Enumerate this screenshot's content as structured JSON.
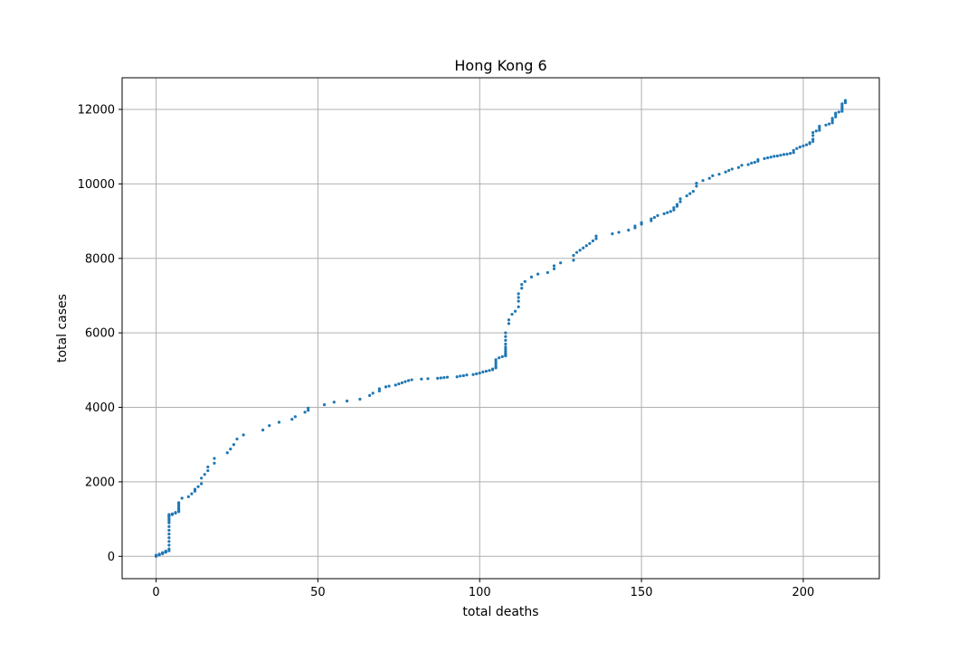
{
  "chart_data": {
    "type": "scatter",
    "title": "Hong Kong 6",
    "xlabel": "total deaths",
    "ylabel": "total cases",
    "xlim": [
      -10.5,
      223.5
    ],
    "ylim": [
      -600,
      12850
    ],
    "xticks": [
      0,
      50,
      100,
      150,
      200
    ],
    "yticks": [
      0,
      2000,
      4000,
      6000,
      8000,
      10000,
      12000
    ],
    "grid": true,
    "marker_color": "#1f77b4",
    "points": [
      [
        0,
        0
      ],
      [
        0,
        5
      ],
      [
        0,
        10
      ],
      [
        0,
        15
      ],
      [
        0,
        20
      ],
      [
        0,
        25
      ],
      [
        0,
        30
      ],
      [
        1,
        40
      ],
      [
        1,
        50
      ],
      [
        1,
        60
      ],
      [
        2,
        70
      ],
      [
        2,
        80
      ],
      [
        2,
        90
      ],
      [
        2,
        100
      ],
      [
        3,
        110
      ],
      [
        3,
        120
      ],
      [
        3,
        130
      ],
      [
        3,
        140
      ],
      [
        4,
        150
      ],
      [
        4,
        200
      ],
      [
        4,
        300
      ],
      [
        4,
        400
      ],
      [
        4,
        500
      ],
      [
        4,
        600
      ],
      [
        4,
        700
      ],
      [
        4,
        800
      ],
      [
        4,
        900
      ],
      [
        4,
        950
      ],
      [
        4,
        1000
      ],
      [
        4,
        1050
      ],
      [
        4,
        1080
      ],
      [
        4,
        1100
      ],
      [
        4,
        1120
      ],
      [
        5,
        1120
      ],
      [
        5,
        1140
      ],
      [
        6,
        1160
      ],
      [
        6,
        1180
      ],
      [
        7,
        1200
      ],
      [
        7,
        1220
      ],
      [
        7,
        1260
      ],
      [
        7,
        1300
      ],
      [
        7,
        1350
      ],
      [
        7,
        1400
      ],
      [
        7,
        1440
      ],
      [
        8,
        1560
      ],
      [
        10,
        1600
      ],
      [
        11,
        1680
      ],
      [
        12,
        1750
      ],
      [
        12,
        1800
      ],
      [
        13,
        1870
      ],
      [
        14,
        1950
      ],
      [
        14,
        2100
      ],
      [
        15,
        2200
      ],
      [
        16,
        2300
      ],
      [
        16,
        2400
      ],
      [
        18,
        2500
      ],
      [
        18,
        2630
      ],
      [
        22,
        2780
      ],
      [
        23,
        2880
      ],
      [
        24,
        3000
      ],
      [
        25,
        3150
      ],
      [
        27,
        3260
      ],
      [
        33,
        3390
      ],
      [
        35,
        3510
      ],
      [
        38,
        3600
      ],
      [
        42,
        3680
      ],
      [
        43,
        3750
      ],
      [
        46,
        3870
      ],
      [
        47,
        3920
      ],
      [
        47,
        3980
      ],
      [
        52,
        4070
      ],
      [
        55,
        4140
      ],
      [
        59,
        4170
      ],
      [
        63,
        4220
      ],
      [
        66,
        4320
      ],
      [
        67,
        4380
      ],
      [
        69,
        4440
      ],
      [
        69,
        4500
      ],
      [
        71,
        4550
      ],
      [
        72,
        4570
      ],
      [
        74,
        4600
      ],
      [
        75,
        4630
      ],
      [
        76,
        4660
      ],
      [
        77,
        4690
      ],
      [
        78,
        4720
      ],
      [
        79,
        4740
      ],
      [
        82,
        4760
      ],
      [
        84,
        4770
      ],
      [
        87,
        4780
      ],
      [
        88,
        4790
      ],
      [
        89,
        4800
      ],
      [
        90,
        4810
      ],
      [
        93,
        4820
      ],
      [
        94,
        4840
      ],
      [
        95,
        4850
      ],
      [
        96,
        4870
      ],
      [
        98,
        4880
      ],
      [
        99,
        4900
      ],
      [
        100,
        4920
      ],
      [
        101,
        4950
      ],
      [
        102,
        4970
      ],
      [
        103,
        4990
      ],
      [
        104,
        5010
      ],
      [
        104,
        5030
      ],
      [
        105,
        5060
      ],
      [
        105,
        5100
      ],
      [
        105,
        5160
      ],
      [
        105,
        5220
      ],
      [
        105,
        5280
      ],
      [
        106,
        5330
      ],
      [
        107,
        5360
      ],
      [
        108,
        5380
      ],
      [
        108,
        5400
      ],
      [
        108,
        5420
      ],
      [
        108,
        5450
      ],
      [
        108,
        5500
      ],
      [
        108,
        5560
      ],
      [
        108,
        5620
      ],
      [
        108,
        5700
      ],
      [
        108,
        5800
      ],
      [
        108,
        5900
      ],
      [
        108,
        6000
      ],
      [
        109,
        6250
      ],
      [
        109,
        6350
      ],
      [
        110,
        6500
      ],
      [
        111,
        6580
      ],
      [
        112,
        6700
      ],
      [
        112,
        6850
      ],
      [
        112,
        6950
      ],
      [
        112,
        7050
      ],
      [
        113,
        7200
      ],
      [
        113,
        7300
      ],
      [
        114,
        7380
      ],
      [
        116,
        7500
      ],
      [
        118,
        7580
      ],
      [
        121,
        7620
      ],
      [
        123,
        7720
      ],
      [
        123,
        7800
      ],
      [
        125,
        7880
      ],
      [
        129,
        7950
      ],
      [
        129,
        8080
      ],
      [
        130,
        8160
      ],
      [
        131,
        8220
      ],
      [
        132,
        8280
      ],
      [
        133,
        8340
      ],
      [
        134,
        8400
      ],
      [
        135,
        8470
      ],
      [
        136,
        8530
      ],
      [
        136,
        8600
      ],
      [
        141,
        8660
      ],
      [
        143,
        8700
      ],
      [
        146,
        8760
      ],
      [
        148,
        8820
      ],
      [
        148,
        8870
      ],
      [
        150,
        8920
      ],
      [
        150,
        8960
      ],
      [
        153,
        9010
      ],
      [
        153,
        9060
      ],
      [
        154,
        9100
      ],
      [
        155,
        9150
      ],
      [
        157,
        9200
      ],
      [
        158,
        9230
      ],
      [
        159,
        9260
      ],
      [
        160,
        9300
      ],
      [
        160,
        9360
      ],
      [
        161,
        9400
      ],
      [
        161,
        9450
      ],
      [
        162,
        9520
      ],
      [
        162,
        9600
      ],
      [
        164,
        9680
      ],
      [
        165,
        9740
      ],
      [
        166,
        9800
      ],
      [
        167,
        9940
      ],
      [
        167,
        10020
      ],
      [
        169,
        10090
      ],
      [
        171,
        10150
      ],
      [
        172,
        10220
      ],
      [
        174,
        10260
      ],
      [
        176,
        10320
      ],
      [
        177,
        10360
      ],
      [
        178,
        10400
      ],
      [
        180,
        10440
      ],
      [
        181,
        10500
      ],
      [
        183,
        10520
      ],
      [
        184,
        10560
      ],
      [
        185,
        10580
      ],
      [
        186,
        10610
      ],
      [
        186,
        10650
      ],
      [
        188,
        10680
      ],
      [
        189,
        10700
      ],
      [
        190,
        10720
      ],
      [
        191,
        10740
      ],
      [
        192,
        10750
      ],
      [
        193,
        10770
      ],
      [
        194,
        10790
      ],
      [
        195,
        10800
      ],
      [
        196,
        10820
      ],
      [
        197,
        10840
      ],
      [
        197,
        10900
      ],
      [
        198,
        10950
      ],
      [
        199,
        10990
      ],
      [
        200,
        11020
      ],
      [
        201,
        11050
      ],
      [
        202,
        11080
      ],
      [
        202,
        11110
      ],
      [
        203,
        11140
      ],
      [
        203,
        11200
      ],
      [
        203,
        11300
      ],
      [
        203,
        11380
      ],
      [
        204,
        11420
      ],
      [
        205,
        11440
      ],
      [
        205,
        11500
      ],
      [
        205,
        11550
      ],
      [
        207,
        11580
      ],
      [
        208,
        11610
      ],
      [
        209,
        11640
      ],
      [
        209,
        11700
      ],
      [
        209,
        11760
      ],
      [
        210,
        11800
      ],
      [
        210,
        11860
      ],
      [
        210,
        11900
      ],
      [
        211,
        11930
      ],
      [
        212,
        11950
      ],
      [
        212,
        12000
      ],
      [
        212,
        12050
      ],
      [
        212,
        12100
      ],
      [
        212,
        12150
      ],
      [
        213,
        12180
      ],
      [
        213,
        12210
      ],
      [
        213,
        12240
      ]
    ]
  }
}
